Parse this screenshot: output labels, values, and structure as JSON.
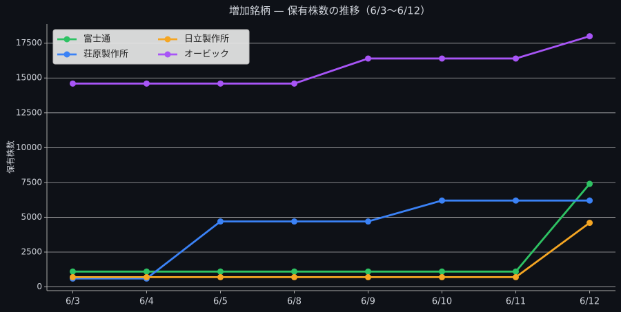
{
  "chart_data": {
    "type": "line",
    "title": "増加銘柄 — 保有株数の推移（6/3〜6/12）",
    "y_label": "保有株数",
    "categories": [
      "6/3",
      "6/4",
      "6/5",
      "6/8",
      "6/9",
      "6/10",
      "6/11",
      "6/12"
    ],
    "series": [
      {
        "name": "富士通",
        "color": "#2ec263",
        "values": [
          1100,
          1100,
          1100,
          1100,
          1100,
          1100,
          1100,
          7400
        ]
      },
      {
        "name": "荘原製作所",
        "color": "#3b82f6",
        "values": [
          600,
          600,
          4700,
          4700,
          4700,
          6200,
          6200,
          6200
        ]
      },
      {
        "name": "日立製作所",
        "color": "#f5a623",
        "values": [
          700,
          700,
          700,
          700,
          700,
          700,
          700,
          4600
        ]
      },
      {
        "name": "オービック",
        "color": "#a855f7",
        "values": [
          14600,
          14600,
          14600,
          14600,
          16400,
          16400,
          16400,
          18000
        ]
      }
    ],
    "ylim": [
      -270,
      18870
    ],
    "yticks": [
      0,
      2500,
      5000,
      7500,
      10000,
      12500,
      15000,
      17500
    ],
    "grid": true,
    "legend": "upper-left",
    "legend_columns": 2
  }
}
